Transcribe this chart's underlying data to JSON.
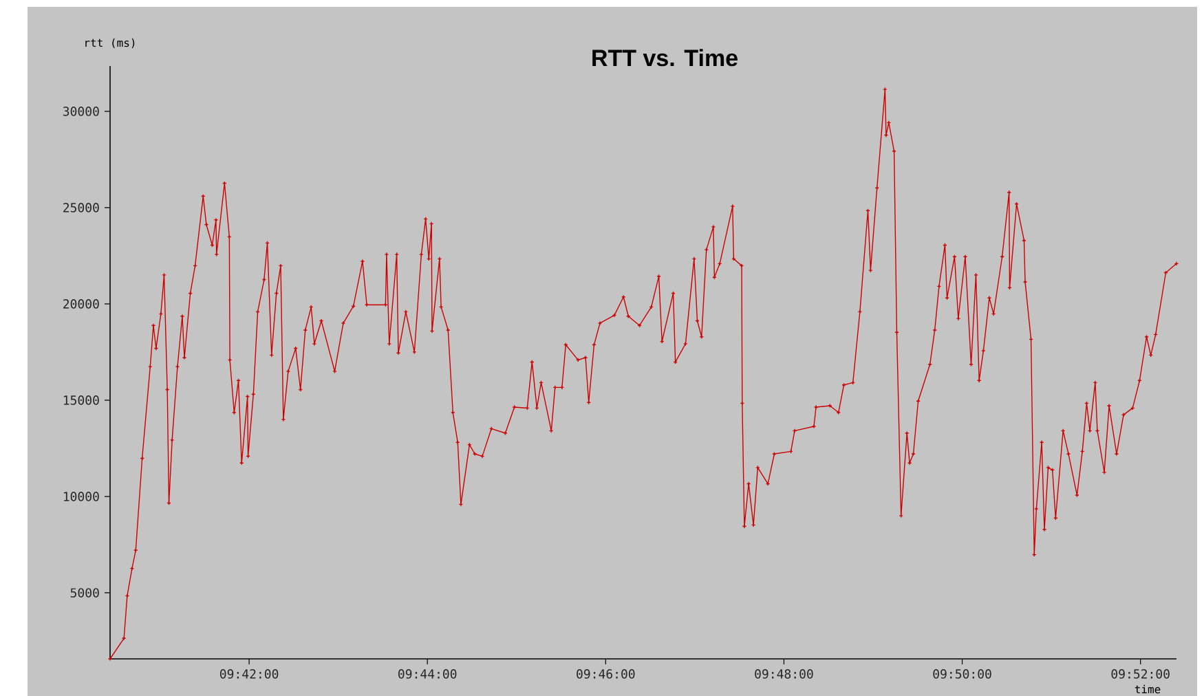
{
  "chart_data": {
    "type": "line",
    "title": "RTT vs. Time",
    "xlabel": "time",
    "ylabel": "rtt (ms)",
    "color": "#cc0000",
    "marker": "cross",
    "xlim": [
      9.674,
      9.8734
    ],
    "ylim": [
      1570,
      32350
    ],
    "xticks": [
      {
        "value": 9.7,
        "label": "09:42:00"
      },
      {
        "value": 9.733333,
        "label": "09:44:00"
      },
      {
        "value": 9.766667,
        "label": "09:46:00"
      },
      {
        "value": 9.8,
        "label": "09:48:00"
      },
      {
        "value": 9.833333,
        "label": "09:50:00"
      },
      {
        "value": 9.866667,
        "label": "09:52:00"
      }
    ],
    "yticks": [
      5000,
      10000,
      15000,
      20000,
      25000,
      30000
    ],
    "x": [
      9.674,
      9.6766,
      9.6772,
      9.6781,
      9.6788,
      9.68,
      9.6815,
      9.6821,
      9.6826,
      9.6835,
      9.6841,
      9.6847,
      9.685,
      9.6856,
      9.6866,
      9.6875,
      9.6879,
      9.689,
      9.6899,
      9.6914,
      9.692,
      9.6931,
      9.6938,
      9.6939,
      9.6954,
      9.6963,
      9.6964,
      9.6972,
      9.698,
      9.6986,
      9.6997,
      9.6998,
      9.7008,
      9.7016,
      9.7028,
      9.7034,
      9.7042,
      9.7051,
      9.7059,
      9.7064,
      9.7073,
      9.7087,
      9.7096,
      9.7105,
      9.7116,
      9.7122,
      9.7135,
      9.716,
      9.7176,
      9.7195,
      9.7212,
      9.722,
      9.7255,
      9.7257,
      9.7262,
      9.7276,
      9.7279,
      9.7293,
      9.7309,
      9.7322,
      9.733,
      9.7336,
      9.7341,
      9.7342,
      9.7356,
      9.7359,
      9.7372,
      9.7381,
      9.739,
      9.7396,
      9.7412,
      9.7422,
      9.7436,
      9.7453,
      9.7479,
      9.7496,
      9.752,
      9.7529,
      9.7538,
      9.7546,
      9.7565,
      9.7572,
      9.7585,
      9.7592,
      9.7615,
      9.7629,
      9.7635,
      9.7645,
      9.7656,
      9.7683,
      9.77,
      9.7709,
      9.773,
      9.7752,
      9.7766,
      9.7772,
      9.7793,
      9.7797,
      9.7816,
      9.7832,
      9.7838,
      9.7846,
      9.7855,
      9.7868,
      9.787,
      9.788,
      9.7904,
      9.7906,
      9.7921,
      9.7922,
      9.7926,
      9.7934,
      9.7943,
      9.7951,
      9.797,
      9.7982,
      9.8013,
      9.802,
      9.8056,
      9.806,
      9.8086,
      9.8102,
      9.8112,
      9.8129,
      9.8142,
      9.8157,
      9.8162,
      9.8174,
      9.8189,
      9.8191,
      9.8196,
      9.8206,
      9.8211,
      9.8219,
      9.823,
      9.8235,
      9.8242,
      9.8251,
      9.8273,
      9.8282,
      9.829,
      9.8301,
      9.8305,
      9.8319,
      9.8326,
      9.8339,
      9.835,
      9.8359,
      9.8365,
      9.8373,
      9.8384,
      9.8392,
      9.8408,
      9.8421,
      9.8422,
      9.8435,
      9.8449,
      9.8451,
      9.8462,
      9.8468,
      9.8472,
      9.8482,
      9.8487,
      9.8494,
      9.8502,
      9.8508,
      9.8522,
      9.8532,
      9.8548,
      9.8558,
      9.8566,
      9.8572,
      9.8582,
      9.8586,
      9.8599,
      9.8608,
      9.8622,
      9.8635,
      9.8652,
      9.8665,
      9.8678,
      9.8686,
      9.8695,
      9.8714,
      9.8734
    ],
    "values": [
      1570,
      2640,
      4840,
      6260,
      7210,
      11980,
      16740,
      18880,
      17690,
      19480,
      21500,
      15550,
      9660,
      12930,
      16740,
      19360,
      17210,
      20550,
      21980,
      25590,
      24120,
      23050,
      24360,
      22570,
      26260,
      23480,
      17090,
      14360,
      16020,
      11740,
      15190,
      12090,
      15310,
      19590,
      21260,
      23160,
      17340,
      20550,
      21980,
      14000,
      16500,
      17690,
      15550,
      18640,
      19840,
      17930,
      19120,
      16500,
      19000,
      19880,
      22210,
      19950,
      19950,
      22570,
      17930,
      22570,
      17450,
      19590,
      17500,
      22570,
      24410,
      22340,
      24160,
      18590,
      22340,
      19840,
      18640,
      14360,
      12810,
      9590,
      12690,
      12210,
      12090,
      13520,
      13290,
      14640,
      14590,
      16980,
      14590,
      15910,
      13410,
      15660,
      15660,
      17880,
      17090,
      17210,
      14880,
      17880,
      19000,
      19410,
      20360,
      19360,
      18880,
      19840,
      21430,
      18050,
      20550,
      16980,
      17930,
      22340,
      19120,
      18290,
      22810,
      24000,
      21380,
      22090,
      25070,
      22340,
      21980,
      14840,
      8450,
      10660,
      8520,
      11500,
      10660,
      12210,
      12340,
      13410,
      13640,
      14640,
      14710,
      14360,
      15790,
      15910,
      19590,
      24840,
      21740,
      26020,
      31140,
      28760,
      29410,
      27930,
      18520,
      9000,
      13290,
      11740,
      12210,
      14950,
      16860,
      18640,
      20910,
      23050,
      20310,
      22450,
      19240,
      22450,
      16860,
      21500,
      16020,
      17570,
      20310,
      19480,
      22450,
      25790,
      20840,
      25190,
      23290,
      21140,
      18160,
      6980,
      9360,
      12810,
      8290,
      11500,
      11380,
      8880,
      13410,
      12210,
      10070,
      12340,
      14840,
      13410,
      15910,
      13410,
      11260,
      14710,
      12210,
      14240,
      14590,
      16020,
      18290,
      17340,
      18410,
      21620,
      22090
    ]
  }
}
